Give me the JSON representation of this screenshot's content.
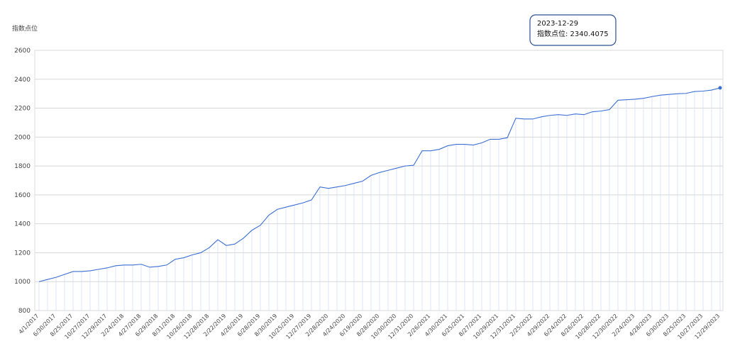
{
  "chart_data": {
    "type": "line",
    "y_label": "指数点位",
    "tooltip": {
      "title": "2023-12-29",
      "text": "指数点位: 2340.4075"
    },
    "categories": [
      "4/1/2017",
      null,
      "6/30/2017",
      null,
      "8/25/2017",
      null,
      "10/27/2017",
      null,
      "12/29/2017",
      null,
      "2/24/2018",
      null,
      "4/27/2018",
      null,
      "6/29/2018",
      null,
      "8/31/2018",
      null,
      "10/26/2018",
      null,
      "12/28/2018",
      null,
      "2/22/2019",
      null,
      "4/26/2019",
      null,
      "6/28/2019",
      null,
      "8/30/2019",
      null,
      "10/25/2019",
      null,
      "12/27/2019",
      null,
      "2/28/2020",
      null,
      "4/24/2020",
      null,
      "6/19/2020",
      null,
      "8/28/2020",
      null,
      "10/30/2020",
      null,
      "12/31/2020",
      null,
      "2/26/2021",
      null,
      "4/30/2021",
      null,
      "6/25/2021",
      null,
      "8/27/2021",
      null,
      "10/29/2021",
      null,
      "12/31/2021",
      null,
      "2/25/2022",
      null,
      "4/29/2022",
      null,
      "6/24/2022",
      null,
      "8/26/2022",
      null,
      "10/28/2022",
      null,
      "12/30/2022",
      null,
      "2/24/2023",
      null,
      "4/28/2023",
      null,
      "6/30/2023",
      null,
      "8/25/2023",
      null,
      "10/27/2023",
      null,
      "12/29/2023"
    ],
    "values": [
      1000,
      1015,
      1030,
      1050,
      1070,
      1070,
      1075,
      1085,
      1095,
      1110,
      1115,
      1115,
      1120,
      1100,
      1105,
      1115,
      1155,
      1165,
      1185,
      1200,
      1235,
      1290,
      1250,
      1260,
      1300,
      1355,
      1390,
      1460,
      1500,
      1515,
      1530,
      1545,
      1565,
      1655,
      1645,
      1655,
      1665,
      1680,
      1695,
      1735,
      1755,
      1770,
      1785,
      1800,
      1805,
      1905,
      1905,
      1915,
      1940,
      1950,
      1950,
      1945,
      1960,
      1985,
      1985,
      1995,
      2130,
      2125,
      2125,
      2140,
      2150,
      2155,
      2150,
      2160,
      2155,
      2175,
      2180,
      2190,
      2255,
      2258,
      2262,
      2268,
      2280,
      2290,
      2295,
      2300,
      2302,
      2315,
      2318,
      2325,
      2340.4075
    ],
    "color": "#3b6fd4",
    "ylim": [
      800,
      2600
    ],
    "yticks": [
      800,
      1000,
      1200,
      1400,
      1600,
      1800,
      2000,
      2200,
      2400,
      2600
    ],
    "grid": true
  }
}
